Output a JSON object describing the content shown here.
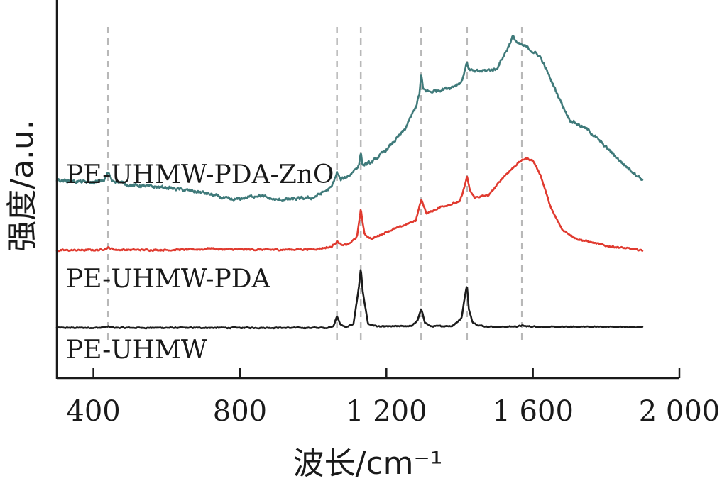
{
  "chart_data": {
    "type": "line",
    "xlabel": "波长/cm⁻¹",
    "ylabel": "强度/a.u.",
    "xlim": [
      300,
      2000
    ],
    "xticks": [
      400,
      800,
      1200,
      1600,
      2000
    ],
    "xtick_labels": [
      "400",
      "800",
      "1 200",
      "1 600",
      "2 000"
    ],
    "y_ticks_shown": false,
    "peak_guides": [
      440,
      1065,
      1130,
      1295,
      1420,
      1570
    ],
    "guide_color": "#b8b8b8",
    "series": [
      {
        "name": "PE-UHMW",
        "color": "#1c1c1c",
        "noise": 0.25,
        "x": [
          300,
          420,
          440,
          460,
          900,
          1040,
          1055,
          1065,
          1075,
          1090,
          1110,
          1125,
          1130,
          1135,
          1150,
          1180,
          1270,
          1285,
          1295,
          1305,
          1320,
          1380,
          1405,
          1415,
          1420,
          1425,
          1435,
          1450,
          1500,
          1560,
          1570,
          1580,
          1650,
          1750,
          1900
        ],
        "y": [
          0.0,
          0.0,
          0.3,
          0.0,
          0.0,
          0.0,
          0.5,
          3.0,
          0.8,
          0.2,
          1.0,
          11.0,
          16.0,
          10.0,
          1.0,
          0.3,
          0.5,
          2.0,
          5.0,
          1.5,
          0.4,
          0.5,
          2.5,
          9.0,
          11.5,
          5.0,
          1.5,
          0.6,
          0.2,
          0.4,
          0.6,
          0.4,
          0.2,
          0.3,
          0.2
        ]
      },
      {
        "name": "PE-UHMW-PDA",
        "color": "#e03a2f",
        "noise": 0.6,
        "x": [
          300,
          420,
          440,
          460,
          600,
          700,
          720,
          740,
          900,
          1000,
          1050,
          1065,
          1080,
          1100,
          1120,
          1130,
          1140,
          1160,
          1200,
          1250,
          1280,
          1295,
          1310,
          1350,
          1400,
          1412,
          1420,
          1428,
          1440,
          1480,
          1520,
          1560,
          1580,
          1600,
          1620,
          1650,
          1680,
          1720,
          1800,
          1900
        ],
        "y": [
          0.0,
          0.2,
          1.2,
          0.3,
          0.2,
          0.5,
          1.0,
          0.5,
          0.3,
          0.5,
          1.5,
          4.0,
          2.0,
          3.0,
          6.0,
          18.0,
          7.0,
          5.0,
          8.0,
          11.0,
          13.0,
          22.0,
          16.0,
          19.0,
          21.0,
          27.0,
          32.0,
          26.0,
          23.0,
          24.0,
          32.0,
          38.0,
          40.0,
          39.0,
          33.0,
          18.0,
          9.0,
          5.0,
          2.0,
          0.0
        ]
      },
      {
        "name": "PE-UHMW-PDA-ZnO",
        "color": "#3f7a7a",
        "noise": 1.1,
        "x": [
          300,
          400,
          430,
          440,
          450,
          500,
          600,
          700,
          780,
          850,
          900,
          1000,
          1050,
          1065,
          1075,
          1100,
          1125,
          1130,
          1135,
          1160,
          1200,
          1250,
          1280,
          1290,
          1295,
          1300,
          1320,
          1380,
          1405,
          1415,
          1420,
          1425,
          1440,
          1500,
          1530,
          1545,
          1560,
          1580,
          1620,
          1680,
          1700,
          1750,
          1800,
          1850,
          1900
        ],
        "y": [
          44.0,
          43.0,
          44.0,
          47.0,
          44.0,
          42.0,
          41.0,
          39.0,
          36.0,
          38.0,
          36.0,
          37.0,
          41.0,
          47.0,
          44.0,
          46.0,
          50.0,
          55.0,
          50.0,
          51.0,
          56.0,
          64.0,
          73.0,
          78.0,
          86.0,
          80.0,
          79.0,
          81.0,
          83.0,
          88.0,
          91.0,
          88.0,
          87.0,
          88.0,
          96.0,
          101.0,
          98.0,
          97.0,
          93.0,
          74.0,
          68.0,
          64.0,
          57.0,
          50.0,
          44.0
        ]
      }
    ]
  }
}
